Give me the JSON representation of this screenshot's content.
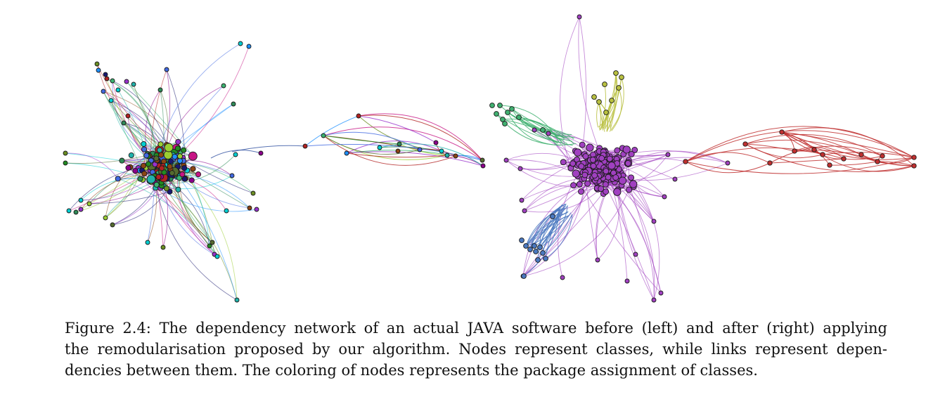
{
  "caption": {
    "lines": [
      "Figure 2.4: The dependency network of an actual JAVA software before (left) and after (right) applying",
      "the remodularisation proposed by our algorithm. Nodes represent classes, while links represent depen-",
      "dencies between them. The coloring of nodes represents the package assignment of classes."
    ]
  },
  "colors": {
    "left_palette": [
      "#2e8b57",
      "#9acd32",
      "#b22222",
      "#1e90ff",
      "#8b008b",
      "#20b2aa",
      "#6b8e23",
      "#4169e1",
      "#c71585",
      "#556b2f",
      "#8b4513",
      "#00ced1",
      "#3cb371",
      "#9932cc",
      "#228b22",
      "#191970"
    ],
    "right_main": "#a040c0",
    "right_red": "#c03030",
    "right_green": "#40b070",
    "right_yellow": "#b8c040",
    "right_blue": "#4a78c0"
  },
  "panels": {
    "left": "left-network-panel",
    "right": "right-network-panel"
  }
}
